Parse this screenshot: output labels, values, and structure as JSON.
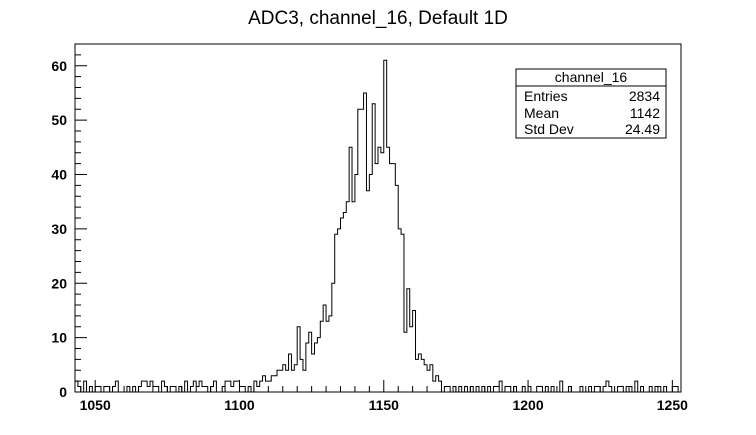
{
  "chart_data": {
    "type": "histogram",
    "title": "ADC3, channel_16, Default 1D",
    "xlabel": "",
    "ylabel": "",
    "xlim": [
      1043,
      1253
    ],
    "ylim": [
      0,
      64
    ],
    "x_ticks": [
      1050,
      1100,
      1150,
      1200,
      1250
    ],
    "y_ticks": [
      0,
      10,
      20,
      30,
      40,
      50,
      60
    ],
    "bin_width": 1,
    "bins_x": [
      1043,
      1044,
      1045,
      1046,
      1047,
      1048,
      1049,
      1050,
      1051,
      1052,
      1053,
      1054,
      1055,
      1056,
      1057,
      1058,
      1059,
      1060,
      1061,
      1062,
      1063,
      1064,
      1065,
      1066,
      1067,
      1068,
      1069,
      1070,
      1071,
      1072,
      1073,
      1074,
      1075,
      1076,
      1077,
      1078,
      1079,
      1080,
      1081,
      1082,
      1083,
      1084,
      1085,
      1086,
      1087,
      1088,
      1089,
      1090,
      1091,
      1092,
      1093,
      1094,
      1095,
      1096,
      1097,
      1098,
      1099,
      1100,
      1101,
      1102,
      1103,
      1104,
      1105,
      1106,
      1107,
      1108,
      1109,
      1110,
      1111,
      1112,
      1113,
      1114,
      1115,
      1116,
      1117,
      1118,
      1119,
      1120,
      1121,
      1122,
      1123,
      1124,
      1125,
      1126,
      1127,
      1128,
      1129,
      1130,
      1131,
      1132,
      1133,
      1134,
      1135,
      1136,
      1137,
      1138,
      1139,
      1140,
      1141,
      1142,
      1143,
      1144,
      1145,
      1146,
      1147,
      1148,
      1149,
      1150,
      1151,
      1152,
      1153,
      1154,
      1155,
      1156,
      1157,
      1158,
      1159,
      1160,
      1161,
      1162,
      1163,
      1164,
      1165,
      1166,
      1167,
      1168,
      1169,
      1170,
      1171,
      1172,
      1173,
      1174,
      1175,
      1176,
      1177,
      1178,
      1179,
      1180,
      1181,
      1182,
      1183,
      1184,
      1185,
      1186,
      1187,
      1188,
      1189,
      1190,
      1191,
      1192,
      1193,
      1194,
      1195,
      1196,
      1197,
      1198,
      1199,
      1200,
      1201,
      1202,
      1203,
      1204,
      1205,
      1206,
      1207,
      1208,
      1209,
      1210,
      1211,
      1212,
      1213,
      1214,
      1215,
      1216,
      1217,
      1218,
      1219,
      1220,
      1221,
      1222,
      1223,
      1224,
      1225,
      1226,
      1227,
      1228,
      1229,
      1230,
      1231,
      1232,
      1233,
      1234,
      1235,
      1236,
      1237,
      1238,
      1239,
      1240,
      1241,
      1242,
      1243,
      1244,
      1245,
      1246,
      1247,
      1248,
      1249,
      1250,
      1251,
      1252
    ],
    "counts": [
      2,
      1,
      0,
      2,
      0,
      1,
      0,
      1,
      1,
      0,
      1,
      1,
      0,
      1,
      2,
      0,
      0,
      0,
      1,
      0,
      1,
      0,
      1,
      2,
      2,
      1,
      2,
      1,
      1,
      0,
      2,
      1,
      0,
      1,
      1,
      0,
      1,
      0,
      2,
      0,
      1,
      2,
      1,
      2,
      1,
      1,
      0,
      1,
      2,
      0,
      0,
      1,
      2,
      2,
      1,
      2,
      2,
      1,
      1,
      0,
      1,
      0,
      2,
      1,
      2,
      3,
      2,
      2,
      3,
      3,
      4,
      4,
      5,
      4,
      7,
      4,
      5,
      12,
      6,
      4,
      9,
      11,
      7,
      9,
      10,
      13,
      16,
      13,
      14,
      20,
      29,
      30,
      32,
      33,
      35,
      45,
      35,
      40,
      52,
      52,
      55,
      37,
      40,
      53,
      42,
      45,
      44,
      61,
      45,
      42,
      42,
      38,
      30,
      29,
      11,
      19,
      12,
      15,
      6,
      7,
      6,
      5,
      4,
      5,
      2,
      3,
      2,
      0,
      1,
      1,
      0,
      1,
      0,
      1,
      0,
      1,
      0,
      1,
      0,
      1,
      0,
      1,
      0,
      1,
      0,
      1,
      1,
      2,
      0,
      1,
      1,
      0,
      1,
      0,
      0,
      1,
      0,
      1,
      0,
      0,
      1,
      1,
      0,
      1,
      0,
      1,
      0,
      0,
      2,
      0,
      0,
      1,
      0,
      0,
      0,
      1,
      0,
      0,
      1,
      0,
      1,
      1,
      0,
      1,
      2,
      1,
      0,
      0,
      1,
      1,
      0,
      1,
      1,
      0,
      2,
      0,
      1,
      0,
      0,
      1,
      0,
      1,
      1,
      0,
      1,
      0,
      0,
      1,
      1,
      0
    ],
    "stats_box": {
      "title": "channel_16",
      "rows": [
        {
          "label": "Entries",
          "value": "2834"
        },
        {
          "label": "Mean",
          "value": "1142"
        },
        {
          "label": "Std Dev",
          "value": "24.49"
        }
      ]
    },
    "grid": false,
    "legend": "none",
    "line_color": "#000000"
  }
}
